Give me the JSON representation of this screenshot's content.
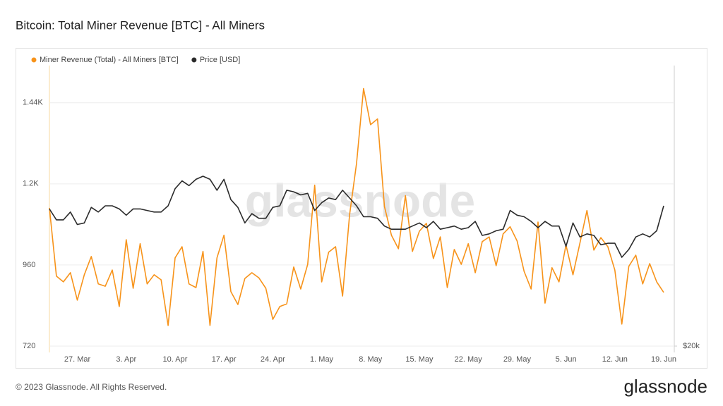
{
  "chart_data": {
    "type": "line",
    "title": "Bitcoin: Total Miner Revenue [BTC] - All Miners",
    "watermark": "glassnode",
    "footer": "© 2023 Glassnode. All Rights Reserved.",
    "logo": "glassnode",
    "categories": [
      null,
      null,
      null,
      null,
      "27. Mar",
      null,
      null,
      null,
      null,
      null,
      null,
      "3. Apr",
      null,
      null,
      null,
      null,
      null,
      null,
      "10. Apr",
      null,
      null,
      null,
      null,
      null,
      null,
      "17. Apr",
      null,
      null,
      null,
      null,
      null,
      null,
      "24. Apr",
      null,
      null,
      null,
      null,
      null,
      null,
      "1. May",
      null,
      null,
      null,
      null,
      null,
      null,
      "8. May",
      null,
      null,
      null,
      null,
      null,
      null,
      "15. May",
      null,
      null,
      null,
      null,
      null,
      null,
      "22. May",
      null,
      null,
      null,
      null,
      null,
      null,
      "29. May",
      null,
      null,
      null,
      null,
      null,
      null,
      "5. Jun",
      null,
      null,
      null,
      null,
      null,
      null,
      "12. Jun",
      null,
      null,
      null,
      null,
      null,
      null,
      "19. Jun"
    ],
    "series": [
      {
        "name": "Miner Revenue (Total) - All Miners [BTC]",
        "color": "#f7931a",
        "axis": "y",
        "values": [
          1129,
          927,
          910,
          937,
          856,
          931,
          985,
          904,
          897,
          945,
          837,
          1035,
          891,
          1023,
          904,
          931,
          916,
          781,
          981,
          1014,
          904,
          893,
          1000,
          781,
          981,
          1048,
          881,
          843,
          920,
          937,
          922,
          891,
          799,
          837,
          845,
          954,
          889,
          962,
          1196,
          910,
          998,
          1014,
          868,
          1108,
          1261,
          1482,
          1375,
          1392,
          1133,
          1048,
          1008,
          1165,
          1000,
          1060,
          1083,
          979,
          1043,
          893,
          1006,
          962,
          1023,
          937,
          1029,
          1043,
          958,
          1052,
          1073,
          1031,
          941,
          889,
          1087,
          847,
          952,
          910,
          1019,
          931,
          1025,
          1121,
          1004,
          1041,
          1014,
          945,
          785,
          956,
          989,
          904,
          964,
          910,
          879
        ]
      },
      {
        "name": "Price [USD]",
        "color": "#2b2b2b",
        "axis": "y2",
        "values": [
          28800,
          28100,
          28100,
          28600,
          27800,
          27900,
          28900,
          28600,
          29000,
          29000,
          28800,
          28400,
          28800,
          28800,
          28700,
          28600,
          28600,
          29000,
          30100,
          30600,
          30300,
          30700,
          30900,
          30700,
          30000,
          30700,
          29400,
          28900,
          27900,
          28500,
          28200,
          28200,
          28900,
          29000,
          30000,
          29900,
          29700,
          29800,
          28700,
          29200,
          29500,
          29400,
          30000,
          29500,
          29000,
          28300,
          28300,
          28200,
          27700,
          27500,
          27500,
          27500,
          27700,
          27900,
          27600,
          28000,
          27500,
          27600,
          27700,
          27500,
          27600,
          28000,
          27100,
          27200,
          27400,
          27500,
          28700,
          28400,
          28300,
          28000,
          27600,
          28000,
          27700,
          27700,
          26400,
          27900,
          27000,
          27200,
          27100,
          26500,
          26600,
          26600,
          25700,
          26200,
          27000,
          27200,
          27000,
          27400,
          29000
        ]
      }
    ],
    "ylim": [
      720,
      1550
    ],
    "yticks": [
      720,
      960,
      {
        "value": 1200,
        "label": "1.2K"
      },
      {
        "value": 1440,
        "label": "1.44K"
      }
    ],
    "y2lim": [
      20000,
      38000
    ],
    "y2ticks": [
      {
        "value": 20000,
        "label": "$20k"
      }
    ],
    "grid": true,
    "legend": "top-left"
  }
}
